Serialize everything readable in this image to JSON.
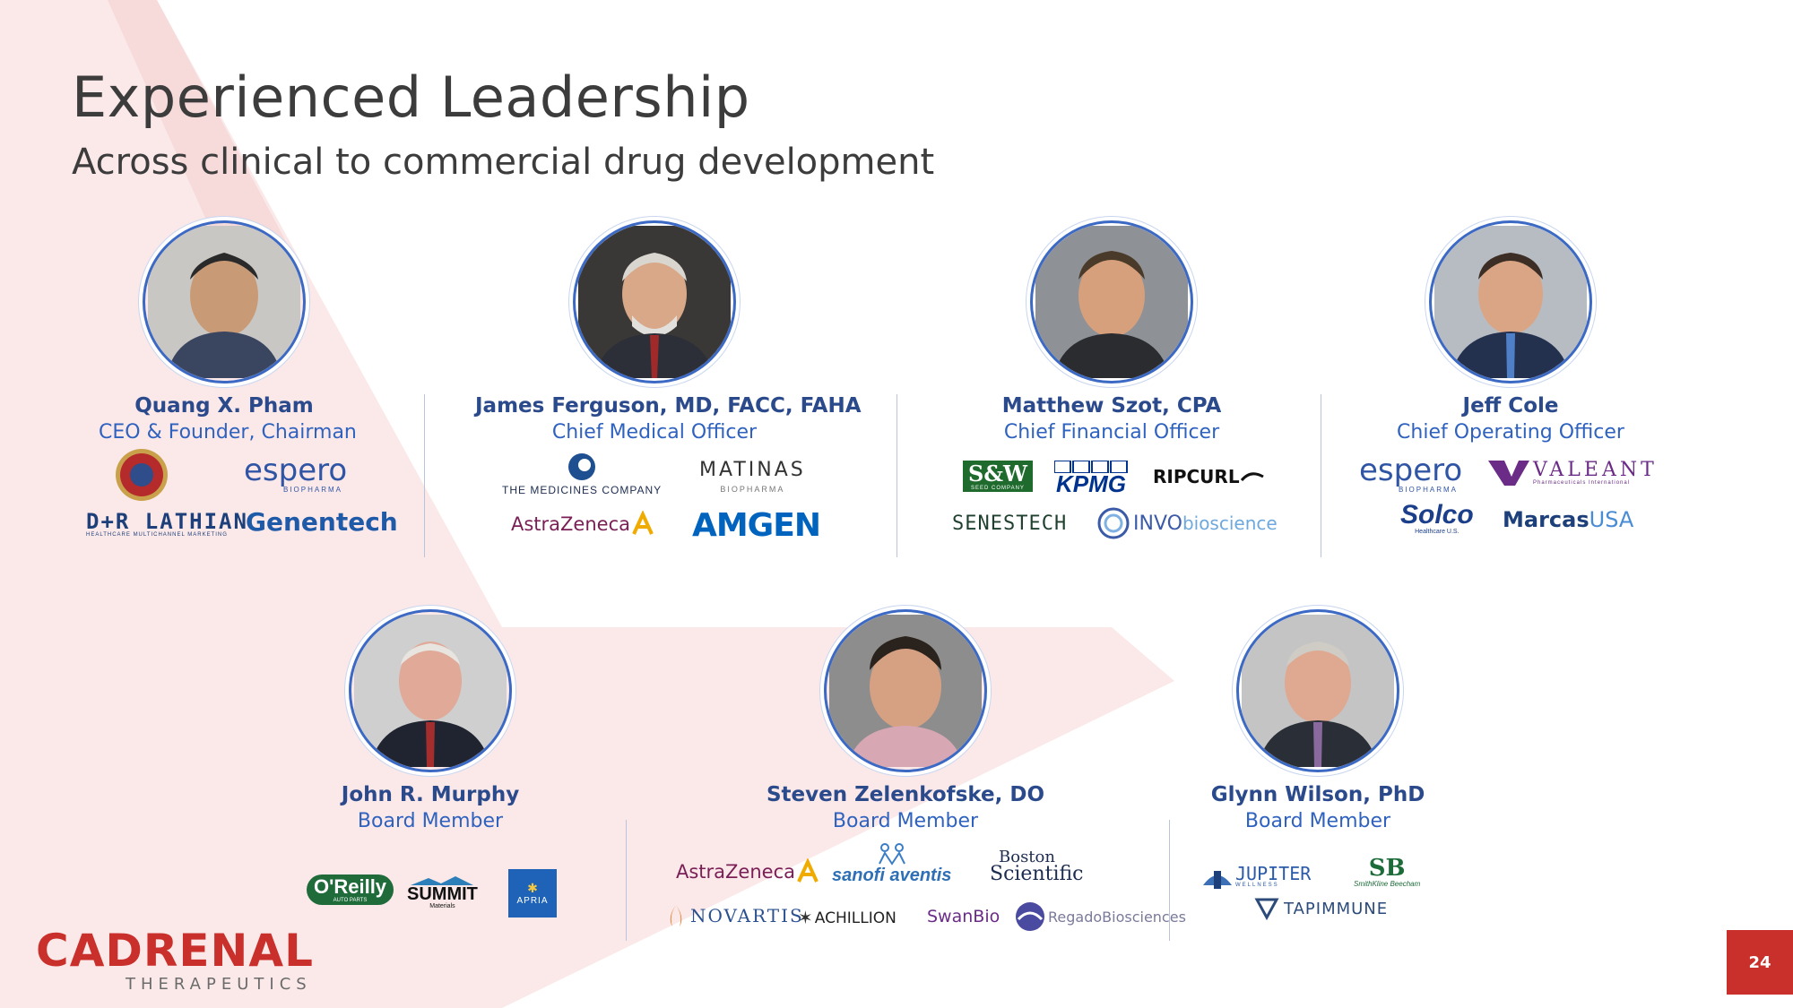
{
  "header": {
    "title": "Experienced Leadership",
    "subtitle": "Across clinical to commercial drug development"
  },
  "people": [
    {
      "name": "Quang X. Pham",
      "role": "CEO & Founder, Chairman",
      "logos": [
        "marine-corps-seal",
        "espero",
        "D+R LATHIAN",
        "Genentech"
      ]
    },
    {
      "name": "James Ferguson, MD, FACC, FAHA",
      "role": "Chief Medical Officer",
      "logos": [
        "THE MEDICINES COMPANY",
        "MATINAS",
        "AstraZeneca",
        "AMGEN"
      ]
    },
    {
      "name": "Matthew Szot, CPA",
      "role": "Chief Financial Officer",
      "logos": [
        "S&W",
        "KPMG",
        "RIPCURL",
        "SENESTECH",
        "INVObioscience"
      ]
    },
    {
      "name": "Jeff Cole",
      "role": "Chief Operating Officer",
      "logos": [
        "espero",
        "VALEANT",
        "Solco",
        "MarcasUSA"
      ]
    },
    {
      "name": "John R. Murphy",
      "role": "Board Member",
      "logos": [
        "O'Reilly",
        "SUMMIT",
        "APRIA"
      ]
    },
    {
      "name": "Steven Zelenkofske, DO",
      "role": "Board Member",
      "logos": [
        "AstraZeneca",
        "sanofi aventis",
        "Boston Scientific",
        "NOVARTIS",
        "ACHILLION",
        "SwanBio",
        "RegadoBiosciences"
      ]
    },
    {
      "name": "Glynn Wilson, PhD",
      "role": "Board Member",
      "logos": [
        "JUPITER",
        "SB",
        "TAPIMMUNE"
      ]
    }
  ],
  "logo_text": {
    "espero": "espero",
    "espero_sub": "BIOPHARMA",
    "dr_lathian": "D+R LATHIAN",
    "dr_lathian_sub": "HEALTHCARE MULTICHANNEL MARKETING",
    "genentech": "Genentech",
    "medicines": "THE MEDICINES COMPANY",
    "matinas": "MATINAS",
    "matinas_sub": "BIOPHARMA",
    "astrazeneca": "AstraZeneca",
    "amgen": "AMGEN",
    "sw": "S&W",
    "sw_sub": "SEED COMPANY",
    "kpmg": "KPMG",
    "ripcurl": "RIPCURL",
    "senestech": "SENESTECH",
    "invo": "INVO",
    "invo2": "bioscience",
    "valeant": "VALEANT",
    "valeant_sub": "Pharmaceuticals International",
    "solco": "Solco",
    "solco_sub": "Healthcare U.S.",
    "marcas": "Marcas",
    "marcas2": "USA",
    "oreilly": "O'Reilly",
    "oreilly_sub": "AUTO PARTS",
    "summit": "SUMMIT",
    "summit_sub": "Materials",
    "apria": "APRIA",
    "sanofi": "sanofi aventis",
    "boston1": "Boston",
    "boston2": "Scientific",
    "novartis": "NOVARTIS",
    "achillion": "ACHILLION",
    "swanbio": "SwanBio",
    "regado": "RegadoBiosciences",
    "jupiter": "JUPITER",
    "jupiter_sub": "WELLNESS",
    "sb": "SB",
    "sb_sub": "SmithKline Beecham",
    "tapimmune": "TAPIMMUNE"
  },
  "footer": {
    "brand": "CADRENAL",
    "brand_sub": "THERAPEUTICS",
    "page_number": "24"
  },
  "colors": {
    "brand_red": "#c9302c",
    "name_blue": "#2b4a8c",
    "role_blue": "#2f62bf",
    "photo_ring": "#3b69c4"
  }
}
